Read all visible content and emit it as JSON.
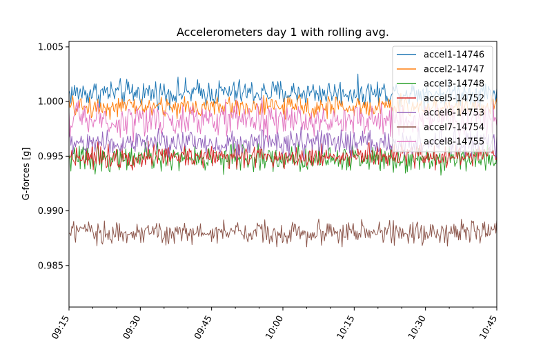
{
  "chart_data": {
    "type": "line",
    "title": "Accelerometers day 1 with rolling avg.",
    "xlabel": "",
    "ylabel": "G-forces [g]",
    "x_range": [
      "09:15",
      "10:45"
    ],
    "ylim": [
      0.9812,
      1.0055
    ],
    "x_ticks": [
      "09:15",
      "09:30",
      "09:45",
      "10:00",
      "10:15",
      "10:30",
      "10:45"
    ],
    "y_ticks": [
      1.005,
      1.0,
      0.995,
      0.99,
      0.985
    ],
    "y_tick_labels": [
      "1.005",
      "1.000",
      "0.995",
      "0.990",
      "0.985"
    ],
    "grid": false,
    "legend_position": "top-right",
    "series": [
      {
        "name": "accel1-14746",
        "color": "#1f77b4",
        "mean": 1.0008,
        "spread": 0.0011,
        "points": 460
      },
      {
        "name": "accel2-14747",
        "color": "#ff7f0e",
        "mean": 0.9995,
        "spread": 0.0009,
        "points": 460
      },
      {
        "name": "accel3-14748",
        "color": "#2ca02c",
        "mean": 0.9948,
        "spread": 0.0011,
        "points": 460
      },
      {
        "name": "accel5-14752",
        "color": "#d62728",
        "mean": 0.995,
        "spread": 0.001,
        "points": 460
      },
      {
        "name": "accel6-14753",
        "color": "#9467bd",
        "mean": 0.9962,
        "spread": 0.0011,
        "points": 460
      },
      {
        "name": "accel7-14754",
        "color": "#8c564b",
        "mean": 0.988,
        "spread": 0.001,
        "points": 460
      },
      {
        "name": "accel8-14755",
        "color": "#e377c2",
        "mean": 0.9983,
        "spread": 0.0014,
        "points": 460
      }
    ]
  }
}
